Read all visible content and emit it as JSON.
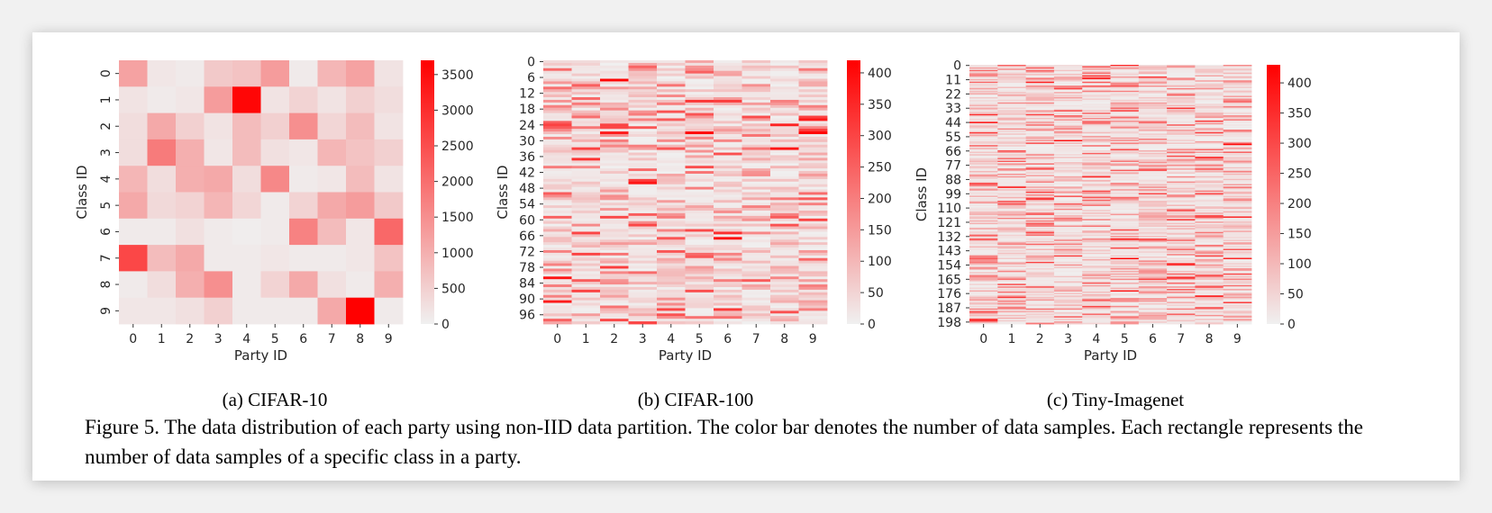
{
  "caption": "Figure 5. The data distribution of each party using non-IID data partition. The color bar denotes the number of data samples. Each rectangle represents the number of data samples of a specific class in a party.",
  "colors": {
    "low": "#f0f0f0",
    "high": "#ff0000",
    "tick_text": "#262626"
  },
  "chart_data": [
    {
      "type": "heatmap",
      "subtitle": "(a) CIFAR-10",
      "xlabel": "Party ID",
      "ylabel": "Class ID",
      "x_categories": [
        "0",
        "1",
        "2",
        "3",
        "4",
        "5",
        "6",
        "7",
        "8",
        "9"
      ],
      "y_tick_labels": [
        "0",
        "1",
        "2",
        "3",
        "4",
        "5",
        "6",
        "7",
        "8",
        "9"
      ],
      "n_rows": 10,
      "colorbar": {
        "min": 0,
        "max": 3700,
        "ticks": [
          0,
          500,
          1000,
          1500,
          2000,
          2500,
          3000,
          3500
        ]
      },
      "values": [
        [
          1200,
          150,
          100,
          600,
          700,
          1300,
          100,
          900,
          1200,
          200
        ],
        [
          200,
          100,
          150,
          1300,
          3600,
          200,
          450,
          200,
          500,
          300
        ],
        [
          300,
          1100,
          500,
          200,
          800,
          500,
          1500,
          400,
          800,
          200
        ],
        [
          300,
          1800,
          1000,
          150,
          800,
          250,
          150,
          900,
          700,
          500
        ],
        [
          900,
          300,
          1000,
          1100,
          300,
          1600,
          100,
          150,
          800,
          200
        ],
        [
          1100,
          350,
          450,
          900,
          400,
          100,
          450,
          1100,
          1300,
          600
        ],
        [
          100,
          100,
          250,
          100,
          50,
          100,
          1700,
          800,
          150,
          2100
        ],
        [
          2600,
          800,
          1100,
          100,
          100,
          150,
          100,
          100,
          150,
          700
        ],
        [
          100,
          300,
          1000,
          1500,
          100,
          450,
          1100,
          250,
          100,
          1000
        ],
        [
          150,
          150,
          250,
          500,
          100,
          100,
          100,
          1100,
          3700,
          100
        ]
      ]
    },
    {
      "type": "heatmap",
      "subtitle": "(b) CIFAR-100",
      "xlabel": "Party ID",
      "ylabel": "Class ID",
      "x_categories": [
        "0",
        "1",
        "2",
        "3",
        "4",
        "5",
        "6",
        "7",
        "8",
        "9"
      ],
      "y_tick_labels": [
        "0",
        "6",
        "12",
        "18",
        "24",
        "30",
        "36",
        "42",
        "48",
        "54",
        "60",
        "66",
        "72",
        "78",
        "84",
        "90",
        "96"
      ],
      "y_tick_step": 6,
      "n_rows": 100,
      "colorbar": {
        "min": 0,
        "max": 420,
        "ticks": [
          0,
          50,
          100,
          150,
          200,
          250,
          300,
          350,
          400
        ]
      },
      "generator": {
        "seed": 17
      }
    },
    {
      "type": "heatmap",
      "subtitle": "(c) Tiny-Imagenet",
      "xlabel": "Party ID",
      "ylabel": "Class ID",
      "x_categories": [
        "0",
        "1",
        "2",
        "3",
        "4",
        "5",
        "6",
        "7",
        "8",
        "9"
      ],
      "y_tick_labels": [
        "0",
        "11",
        "22",
        "33",
        "44",
        "55",
        "66",
        "77",
        "88",
        "99",
        "110",
        "121",
        "132",
        "143",
        "154",
        "165",
        "176",
        "187",
        "198"
      ],
      "y_tick_step": 11,
      "n_rows": 200,
      "colorbar": {
        "min": 0,
        "max": 430,
        "ticks": [
          0,
          50,
          100,
          150,
          200,
          250,
          300,
          350,
          400
        ]
      },
      "generator": {
        "seed": 91
      }
    }
  ]
}
